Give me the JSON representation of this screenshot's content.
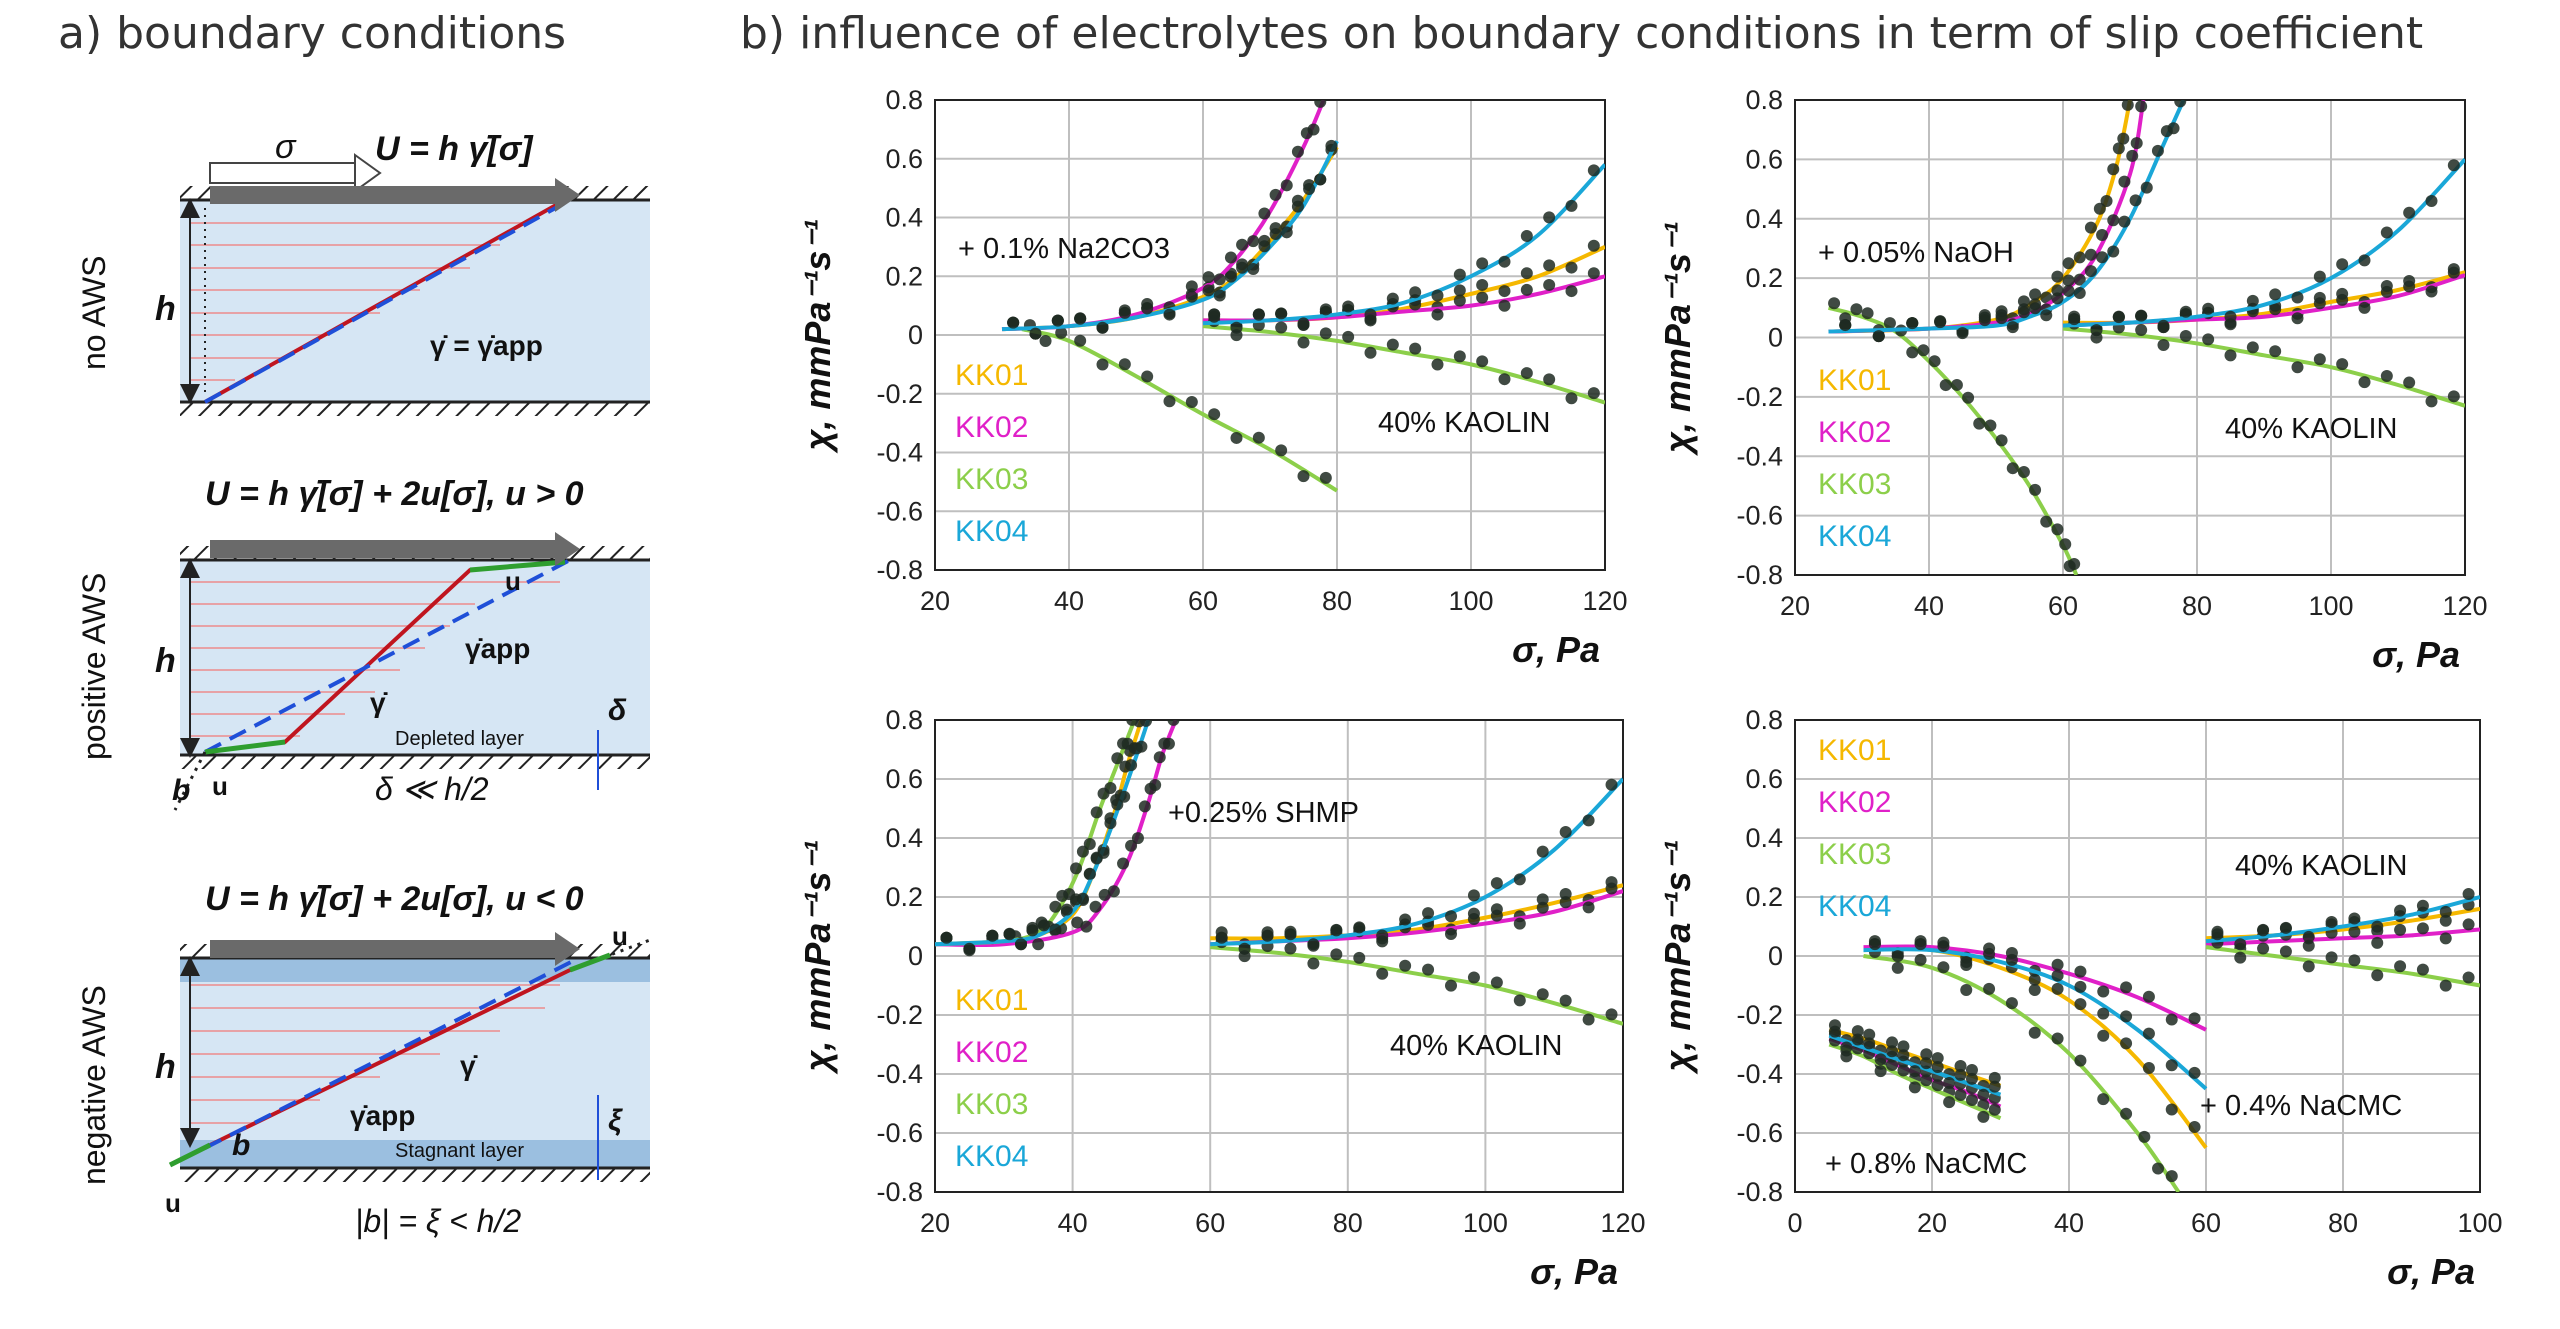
{
  "panel_a": {
    "title": "a) boundary conditions",
    "rows": [
      {
        "side_label": "no AWS",
        "top_text": "U = h γ̇[σ]",
        "sigma_label": "σ",
        "h_label": "h",
        "rate_label": "γ̇ = γ̇app"
      },
      {
        "side_label": "positive AWS",
        "top_text": "U = h γ̇[σ] + 2u[σ], u > 0",
        "h_label": "h",
        "u_label": "u",
        "rate_label": "γ̇",
        "app_label": "γ̇app",
        "delta_label": "δ",
        "layer_label": "Depleted layer",
        "b_label": "b",
        "bottom_text": "δ ≪ h/2"
      },
      {
        "side_label": "negative AWS",
        "top_text": "U = h γ̇[σ] + 2u[σ], u < 0",
        "h_label": "h",
        "u_label": "u",
        "rate_label": "γ̇",
        "app_label": "γ̇app",
        "xi_label": "ξ",
        "layer_label": "Stagnant layer",
        "b_label": "b",
        "bottom_text": "|b| = ξ < h/2"
      }
    ]
  },
  "panel_b": {
    "title": "b) influence of electrolytes on boundary conditions in term of slip coefficient"
  },
  "colors": {
    "KK01": "#f5b800",
    "KK02": "#e020c8",
    "KK03": "#8ccf4a",
    "KK04": "#1aa7d8",
    "schematic_fill": "#d6e6f4",
    "profile": "#c0151f",
    "app": "#1f4fd8",
    "wall": "#2b2b2b",
    "marker": "#1e2a22"
  },
  "chart_data": [
    {
      "type": "scatter",
      "ylabel": "χ, mmPa⁻¹s⁻¹",
      "xlabel": "σ, Pa",
      "xlim": [
        20,
        120
      ],
      "ylim": [
        -0.8,
        0.8
      ],
      "x_ticks": [
        "20",
        "40",
        "60",
        "80",
        "100",
        "120"
      ],
      "y_ticks": [
        "0.8",
        "0.6",
        "0.4",
        "0.2",
        "0",
        "-0.2",
        "-0.4",
        "-0.6",
        "-0.8"
      ],
      "grid": true,
      "annotations": [
        "+ 0.1% Na2CO3",
        "40% KAOLIN"
      ],
      "legend": [
        "KK01",
        "KK02",
        "KK03",
        "KK04"
      ],
      "series": [
        {
          "name": "KK01",
          "x": [
            30,
            40,
            50,
            60,
            65,
            70,
            75,
            80
          ],
          "y": [
            0.02,
            0.03,
            0.06,
            0.13,
            0.2,
            0.32,
            0.46,
            0.64
          ]
        },
        {
          "name": "KK02",
          "x": [
            30,
            40,
            50,
            60,
            65,
            70,
            75,
            78
          ],
          "y": [
            0.02,
            0.03,
            0.07,
            0.16,
            0.26,
            0.42,
            0.64,
            0.8
          ]
        },
        {
          "name": "KK03",
          "x": [
            33,
            40,
            50,
            60,
            70,
            80
          ],
          "y": [
            0.02,
            -0.02,
            -0.14,
            -0.27,
            -0.39,
            -0.53
          ]
        },
        {
          "name": "KK04",
          "x": [
            30,
            40,
            50,
            60,
            65,
            70,
            75,
            80
          ],
          "y": [
            0.02,
            0.03,
            0.06,
            0.12,
            0.19,
            0.3,
            0.44,
            0.66
          ]
        },
        {
          "name": "KK01 (40% KAOLIN)",
          "x": [
            60,
            70,
            80,
            90,
            100,
            110,
            120
          ],
          "y": [
            0.05,
            0.05,
            0.06,
            0.09,
            0.14,
            0.2,
            0.3
          ]
        },
        {
          "name": "KK02 (40% KAOLIN)",
          "x": [
            60,
            70,
            80,
            90,
            100,
            110,
            120
          ],
          "y": [
            0.05,
            0.05,
            0.06,
            0.08,
            0.1,
            0.14,
            0.2
          ]
        },
        {
          "name": "KK03 (40% KAOLIN)",
          "x": [
            60,
            70,
            80,
            90,
            100,
            110,
            120
          ],
          "y": [
            0.03,
            0.01,
            -0.02,
            -0.06,
            -0.1,
            -0.16,
            -0.23
          ]
        },
        {
          "name": "KK04 (40% KAOLIN)",
          "x": [
            60,
            70,
            80,
            90,
            100,
            110,
            120
          ],
          "y": [
            0.04,
            0.05,
            0.07,
            0.11,
            0.2,
            0.34,
            0.58
          ]
        }
      ]
    },
    {
      "type": "scatter",
      "ylabel": "χ, mmPa⁻¹s⁻¹",
      "xlabel": "σ, Pa",
      "xlim": [
        20,
        120
      ],
      "ylim": [
        -0.8,
        0.8
      ],
      "x_ticks": [
        "20",
        "40",
        "60",
        "80",
        "100",
        "120"
      ],
      "y_ticks": [
        "0.8",
        "0.6",
        "0.4",
        "0.2",
        "0",
        "-0.2",
        "-0.4",
        "-0.6",
        "-0.8"
      ],
      "grid": true,
      "annotations": [
        "+ 0.05% NaOH",
        "40% KAOLIN"
      ],
      "legend": [
        "KK01",
        "KK02",
        "KK03",
        "KK04"
      ],
      "series": [
        {
          "name": "KK01",
          "x": [
            25,
            40,
            50,
            55,
            60,
            65,
            68,
            70
          ],
          "y": [
            0.02,
            0.03,
            0.06,
            0.11,
            0.2,
            0.38,
            0.58,
            0.8
          ]
        },
        {
          "name": "KK02",
          "x": [
            25,
            40,
            50,
            55,
            60,
            65,
            70,
            72
          ],
          "y": [
            0.02,
            0.03,
            0.05,
            0.08,
            0.15,
            0.28,
            0.55,
            0.8
          ]
        },
        {
          "name": "KK03",
          "x": [
            25,
            30,
            35,
            40,
            45,
            50,
            55,
            60,
            62
          ],
          "y": [
            0.1,
            0.07,
            0.02,
            -0.08,
            -0.2,
            -0.34,
            -0.5,
            -0.7,
            -0.8
          ]
        },
        {
          "name": "KK04",
          "x": [
            25,
            40,
            50,
            55,
            60,
            65,
            70,
            75,
            78
          ],
          "y": [
            0.02,
            0.03,
            0.04,
            0.07,
            0.12,
            0.22,
            0.4,
            0.65,
            0.8
          ]
        },
        {
          "name": "KK01 (40% KAOLIN)",
          "x": [
            60,
            70,
            80,
            90,
            100,
            110,
            120
          ],
          "y": [
            0.05,
            0.05,
            0.06,
            0.08,
            0.12,
            0.16,
            0.22
          ]
        },
        {
          "name": "KK02 (40% KAOLIN)",
          "x": [
            60,
            70,
            80,
            90,
            100,
            110,
            120
          ],
          "y": [
            0.04,
            0.05,
            0.06,
            0.07,
            0.1,
            0.14,
            0.21
          ]
        },
        {
          "name": "KK03 (40% KAOLIN)",
          "x": [
            60,
            70,
            80,
            90,
            100,
            110,
            120
          ],
          "y": [
            0.03,
            0.01,
            -0.02,
            -0.06,
            -0.1,
            -0.16,
            -0.23
          ]
        },
        {
          "name": "KK04 (40% KAOLIN)",
          "x": [
            60,
            70,
            80,
            90,
            100,
            110,
            120
          ],
          "y": [
            0.04,
            0.05,
            0.07,
            0.11,
            0.2,
            0.36,
            0.6
          ]
        }
      ]
    },
    {
      "type": "scatter",
      "ylabel": "χ, mmPa⁻¹s⁻¹",
      "xlabel": "σ, Pa",
      "xlim": [
        20,
        120
      ],
      "ylim": [
        -0.8,
        0.8
      ],
      "x_ticks": [
        "20",
        "40",
        "60",
        "80",
        "100",
        "120"
      ],
      "y_ticks": [
        "0.8",
        "0.6",
        "0.4",
        "0.2",
        "0",
        "-0.2",
        "-0.4",
        "-0.6",
        "-0.8"
      ],
      "grid": true,
      "annotations": [
        "+0.25% SHMP",
        "40% KAOLIN"
      ],
      "legend": [
        "KK01",
        "KK02",
        "KK03",
        "KK04"
      ],
      "series": [
        {
          "name": "KK01",
          "x": [
            20,
            30,
            35,
            40,
            43,
            46,
            48,
            50
          ],
          "y": [
            0.04,
            0.05,
            0.07,
            0.14,
            0.28,
            0.48,
            0.65,
            0.8
          ]
        },
        {
          "name": "KK02",
          "x": [
            20,
            30,
            40,
            44,
            48,
            51,
            53,
            55
          ],
          "y": [
            0.04,
            0.04,
            0.08,
            0.16,
            0.32,
            0.52,
            0.68,
            0.8
          ]
        },
        {
          "name": "KK03",
          "x": [
            20,
            30,
            35,
            38,
            41,
            44,
            47,
            49
          ],
          "y": [
            0.04,
            0.05,
            0.08,
            0.16,
            0.3,
            0.5,
            0.68,
            0.8
          ]
        },
        {
          "name": "KK04",
          "x": [
            20,
            30,
            35,
            40,
            43,
            46,
            49,
            51
          ],
          "y": [
            0.04,
            0.05,
            0.07,
            0.15,
            0.28,
            0.46,
            0.66,
            0.8
          ]
        },
        {
          "name": "KK01 (40% KAOLIN)",
          "x": [
            60,
            70,
            80,
            90,
            100,
            110,
            120
          ],
          "y": [
            0.06,
            0.06,
            0.07,
            0.09,
            0.13,
            0.18,
            0.24
          ]
        },
        {
          "name": "KK02 (40% KAOLIN)",
          "x": [
            60,
            70,
            80,
            90,
            100,
            110,
            120
          ],
          "y": [
            0.04,
            0.05,
            0.06,
            0.08,
            0.11,
            0.15,
            0.22
          ]
        },
        {
          "name": "KK03 (40% KAOLIN)",
          "x": [
            60,
            70,
            80,
            90,
            100,
            110,
            120
          ],
          "y": [
            0.03,
            0.01,
            -0.02,
            -0.06,
            -0.1,
            -0.16,
            -0.23
          ]
        },
        {
          "name": "KK04 (40% KAOLIN)",
          "x": [
            60,
            70,
            80,
            90,
            100,
            110,
            120
          ],
          "y": [
            0.04,
            0.05,
            0.07,
            0.11,
            0.2,
            0.36,
            0.6
          ]
        }
      ]
    },
    {
      "type": "scatter",
      "ylabel": "χ, mmPa⁻¹s⁻¹",
      "xlabel": "σ, Pa",
      "xlim": [
        0,
        100
      ],
      "ylim": [
        -0.8,
        0.8
      ],
      "x_ticks": [
        "0",
        "20",
        "40",
        "60",
        "80",
        "100"
      ],
      "y_ticks": [
        "0.8",
        "0.6",
        "0.4",
        "0.2",
        "0",
        "-0.2",
        "-0.4",
        "-0.6",
        "-0.8"
      ],
      "grid": true,
      "annotations": [
        "40% KAOLIN",
        "+ 0.4% NaCMC",
        "+ 0.8% NaCMC"
      ],
      "legend": [
        "KK01",
        "KK02",
        "KK03",
        "KK04"
      ],
      "series": [
        {
          "name": "KK01 (0.4% NaCMC)",
          "x": [
            10,
            20,
            30,
            40,
            50,
            60
          ],
          "y": [
            0.02,
            0.02,
            -0.04,
            -0.15,
            -0.35,
            -0.65
          ]
        },
        {
          "name": "KK02 (0.4% NaCMC)",
          "x": [
            10,
            20,
            30,
            40,
            50,
            60
          ],
          "y": [
            0.03,
            0.03,
            0.0,
            -0.06,
            -0.14,
            -0.25
          ]
        },
        {
          "name": "KK03 (0.4% NaCMC)",
          "x": [
            10,
            20,
            30,
            40,
            50,
            56
          ],
          "y": [
            0.0,
            -0.04,
            -0.15,
            -0.33,
            -0.6,
            -0.8
          ]
        },
        {
          "name": "KK04 (0.4% NaCMC)",
          "x": [
            10,
            20,
            30,
            40,
            50,
            60
          ],
          "y": [
            0.02,
            0.02,
            -0.02,
            -0.1,
            -0.25,
            -0.45
          ]
        },
        {
          "name": "KK01 (0.8% NaCMC)",
          "x": [
            5,
            10,
            15,
            20,
            25,
            30
          ],
          "y": [
            -0.25,
            -0.28,
            -0.32,
            -0.36,
            -0.4,
            -0.44
          ]
        },
        {
          "name": "KK02 (0.8% NaCMC)",
          "x": [
            5,
            10,
            15,
            20,
            25,
            30
          ],
          "y": [
            -0.28,
            -0.32,
            -0.37,
            -0.42,
            -0.46,
            -0.51
          ]
        },
        {
          "name": "KK03 (0.8% NaCMC)",
          "x": [
            5,
            10,
            15,
            20,
            25,
            30
          ],
          "y": [
            -0.3,
            -0.34,
            -0.4,
            -0.45,
            -0.5,
            -0.55
          ]
        },
        {
          "name": "KK04 (0.8% NaCMC)",
          "x": [
            5,
            10,
            15,
            20,
            25,
            30
          ],
          "y": [
            -0.27,
            -0.31,
            -0.35,
            -0.39,
            -0.43,
            -0.47
          ]
        },
        {
          "name": "KK01 (40% KAOLIN)",
          "x": [
            60,
            70,
            80,
            90,
            100
          ],
          "y": [
            0.06,
            0.07,
            0.09,
            0.12,
            0.16
          ]
        },
        {
          "name": "KK02 (40% KAOLIN)",
          "x": [
            60,
            70,
            80,
            90,
            100
          ],
          "y": [
            0.04,
            0.05,
            0.06,
            0.07,
            0.09
          ]
        },
        {
          "name": "KK03 (40% KAOLIN)",
          "x": [
            60,
            70,
            80,
            90,
            100
          ],
          "y": [
            0.03,
            0.0,
            -0.03,
            -0.06,
            -0.1
          ]
        },
        {
          "name": "KK04 (40% KAOLIN)",
          "x": [
            60,
            70,
            80,
            90,
            100
          ],
          "y": [
            0.05,
            0.07,
            0.1,
            0.14,
            0.2
          ]
        }
      ]
    }
  ]
}
